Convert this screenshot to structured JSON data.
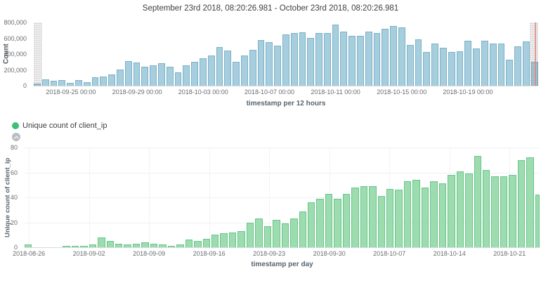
{
  "title": "September 23rd 2018, 08:20:26.981 - October 23rd 2018, 08:20:26.981",
  "chart_data": [
    {
      "name": "count-per-12h",
      "type": "bar",
      "title": "September 23rd 2018, 08:20:26.981 - October 23rd 2018, 08:20:26.981",
      "xlabel": "timestamp per 12 hours",
      "ylabel": "Count",
      "ylim": [
        0,
        800000
      ],
      "grid": false,
      "bar_color": "#a6cede",
      "bar_border": "#7db2c6",
      "partial_first": true,
      "partial_last": true,
      "end_marker_color": "#e0837c",
      "yticks": [
        {
          "label": "800,000",
          "value": 800000
        },
        {
          "label": "600,000",
          "value": 600000
        },
        {
          "label": "400,000",
          "value": 400000
        },
        {
          "label": "200,000",
          "value": 200000
        },
        {
          "label": "0",
          "value": 0
        }
      ],
      "xticks": [
        {
          "label": "2018-09-25 00:00",
          "index": 4
        },
        {
          "label": "2018-09-29 00:00",
          "index": 12
        },
        {
          "label": "2018-10-03 00:00",
          "index": 20
        },
        {
          "label": "2018-10-07 00:00",
          "index": 28
        },
        {
          "label": "2018-10-11 00:00",
          "index": 36
        },
        {
          "label": "2018-10-15 00:00",
          "index": 44
        },
        {
          "label": "2018-10-19 00:00",
          "index": 52
        }
      ],
      "values": [
        25000,
        80000,
        66000,
        72000,
        39000,
        72000,
        45000,
        110000,
        112000,
        140000,
        205000,
        310000,
        290000,
        243000,
        260000,
        283000,
        238000,
        172000,
        260000,
        300000,
        350000,
        385000,
        490000,
        448000,
        300000,
        379000,
        454000,
        576000,
        552000,
        507000,
        650000,
        663000,
        678000,
        603000,
        669000,
        669000,
        770000,
        687000,
        627000,
        633000,
        681000,
        663000,
        716000,
        752000,
        737000,
        516000,
        588000,
        430000,
        537000,
        478000,
        427000,
        439000,
        567000,
        475000,
        573000,
        531000,
        531000,
        328000,
        501000,
        558000,
        298000
      ]
    },
    {
      "name": "unique-clients-per-day",
      "type": "bar",
      "legend": "Unique count of client_ip",
      "legend_color": "#3fbf77",
      "xlabel": "timestamp per day",
      "ylabel": "Unique count of client_ip",
      "ylim": [
        0,
        80
      ],
      "grid": true,
      "last_partial": true,
      "bar_color": "#9cdcae",
      "bar_border": "#68c68c",
      "yticks": [
        {
          "label": "80",
          "value": 80
        },
        {
          "label": "60",
          "value": 60
        },
        {
          "label": "40",
          "value": 40
        },
        {
          "label": "20",
          "value": 20
        },
        {
          "label": "0",
          "value": 0
        }
      ],
      "xticks": [
        {
          "label": "2018-08-26",
          "index": 0
        },
        {
          "label": "2018-09-02",
          "index": 7
        },
        {
          "label": "2018-09-09",
          "index": 14
        },
        {
          "label": "2018-09-16",
          "index": 21
        },
        {
          "label": "2018-09-23",
          "index": 28
        },
        {
          "label": "2018-09-30",
          "index": 35
        },
        {
          "label": "2018-10-07",
          "index": 42
        },
        {
          "label": "2018-10-14",
          "index": 49
        },
        {
          "label": "2018-10-21",
          "index": 56
        }
      ],
      "values": [
        2,
        0,
        0,
        0,
        0,
        1,
        1,
        1,
        2,
        8,
        5,
        3,
        2,
        3,
        4,
        3,
        2,
        1,
        2,
        6,
        5,
        7,
        10,
        11,
        12,
        13,
        20,
        23,
        17,
        22,
        19,
        23,
        29,
        36,
        39,
        43,
        39,
        43,
        48,
        49,
        49,
        41,
        47,
        46,
        53,
        54,
        48,
        53,
        51,
        58,
        61,
        59,
        73,
        62,
        57,
        57,
        58,
        70,
        72,
        42
      ]
    }
  ]
}
